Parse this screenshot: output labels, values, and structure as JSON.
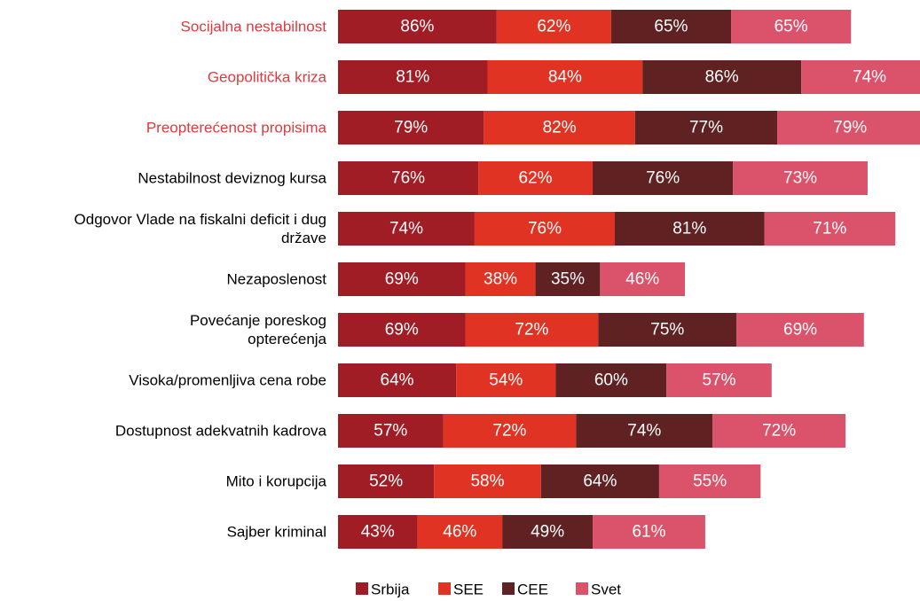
{
  "chart_data": {
    "type": "stacked-bar-horizontal",
    "categories": [
      "Socijalna nestabilnost",
      "Geopolitička kriza",
      "Preopterećenost propisima",
      "Nestabilnost deviznog kursa",
      "Odgovor Vlade na fiskalni deficit i dug\ndržave",
      "Nezaposlenost",
      "Povećanje poreskog\nopterećenja",
      "Visoka/promenljiva cena robe",
      "Dostupnost adekvatnih kadrova",
      "Mito i korupcija",
      "Sajber kriminal"
    ],
    "category_colors": [
      "#e03a3e",
      "#e03a3e",
      "#e03a3e",
      "#000000",
      "#000000",
      "#000000",
      "#000000",
      "#000000",
      "#000000",
      "#000000",
      "#000000"
    ],
    "series": [
      {
        "name": "Srbija",
        "color": "#a01d25",
        "values": [
          86,
          81,
          79,
          76,
          74,
          69,
          69,
          64,
          57,
          52,
          43
        ],
        "value_labels": [
          "86%",
          "81%",
          "79%",
          "76%",
          "74%",
          "69%",
          "69%",
          "64%",
          "57%",
          "52%",
          "43%"
        ]
      },
      {
        "name": "SEE",
        "color": "#e03324",
        "values": [
          62,
          84,
          82,
          62,
          76,
          38,
          72,
          54,
          72,
          58,
          46
        ],
        "value_labels": [
          "62%",
          "84%",
          "82%",
          "62%",
          "76%",
          "38%",
          "72%",
          "54%",
          "72%",
          "58%",
          "46%"
        ]
      },
      {
        "name": "CEE",
        "color": "#5f2121",
        "values": [
          65,
          86,
          77,
          76,
          81,
          35,
          75,
          60,
          74,
          64,
          49
        ],
        "value_labels": [
          "65%",
          "86%",
          "77%",
          "76%",
          "81%",
          "35%",
          "75%",
          "60%",
          "74%",
          "64%",
          "49%"
        ]
      },
      {
        "name": "Svet",
        "color": "#db536b",
        "values": [
          65,
          74,
          79,
          73,
          71,
          46,
          69,
          57,
          72,
          55,
          61
        ],
        "value_labels": [
          "65%",
          "74%",
          "79%",
          "73%",
          "71%",
          "46%",
          "69%",
          "57%",
          "72%",
          "55%",
          "61%"
        ]
      }
    ]
  }
}
